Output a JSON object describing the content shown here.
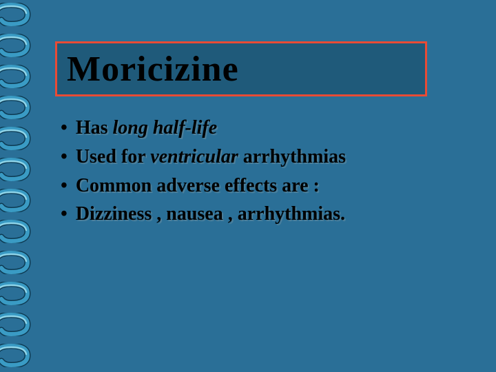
{
  "slide": {
    "background_color": "#2a6f97",
    "title": {
      "text": "Moricizine",
      "box_bg": "#1f5a7a",
      "box_border": "#e94b35",
      "font_size": 52,
      "color": "#000000"
    },
    "bullets": [
      {
        "prefix": "Has ",
        "italic": "long half-life",
        "suffix": ""
      },
      {
        "prefix": "Used for ",
        "italic": "ventricular",
        "suffix": " arrhythmias"
      },
      {
        "prefix": "Common adverse effects are :",
        "italic": "",
        "suffix": ""
      },
      {
        "prefix": "Dizziness , nausea , arrhythmias.",
        "italic": "",
        "suffix": ""
      }
    ],
    "bullet_style": {
      "font_size": 28,
      "color": "#000000",
      "shadow_color": "rgba(100,140,160,0.6)"
    },
    "spiral": {
      "ring_count": 12,
      "ring_spacing": 45,
      "ring_colors": {
        "light": "#8fd4e8",
        "mid": "#3a9bc4",
        "dark": "#0d3a52"
      }
    }
  }
}
